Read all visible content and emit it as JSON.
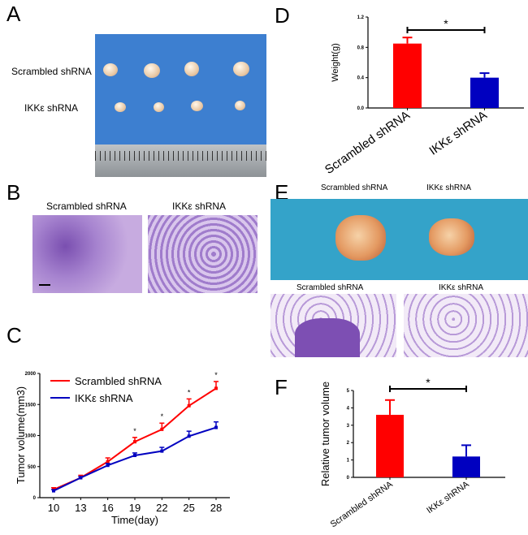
{
  "panels": {
    "A": {
      "letter": "A",
      "row_labels": [
        "Scrambled shRNA",
        "IKKε shRNA"
      ]
    },
    "B": {
      "letter": "B",
      "col_labels": [
        "Scrambled shRNA",
        "IKKε shRNA"
      ]
    },
    "C": {
      "letter": "C"
    },
    "D": {
      "letter": "D"
    },
    "E": {
      "letter": "E",
      "top_labels": [
        "Scrambled shRNA",
        "IKKε shRNA"
      ],
      "bottom_labels": [
        "Scrambled shRNA",
        "IKKε  shRNA"
      ]
    },
    "F": {
      "letter": "F"
    }
  },
  "colors": {
    "scrambled": "#ff0000",
    "ikk": "#0000c0"
  },
  "chart_data": [
    {
      "id": "C",
      "type": "line",
      "xlabel": "Time(day)",
      "ylabel": "Tumor volume(mm3)",
      "x": [
        10,
        13,
        16,
        19,
        22,
        25,
        28
      ],
      "xticks": [
        "10",
        "13",
        "16",
        "19",
        "22",
        "25",
        "28"
      ],
      "yticks": [
        "0",
        "500",
        "1000",
        "1500",
        "2000"
      ],
      "ylim": [
        0,
        2000
      ],
      "series": [
        {
          "name": "Scrambled shRNA",
          "values": [
            130,
            320,
            580,
            900,
            1100,
            1480,
            1760
          ],
          "err": [
            30,
            40,
            60,
            70,
            100,
            110,
            110
          ]
        },
        {
          "name": "IKKε shRNA",
          "values": [
            110,
            320,
            520,
            680,
            750,
            990,
            1130
          ],
          "err": [
            20,
            20,
            30,
            40,
            60,
            80,
            90
          ]
        }
      ],
      "significance": {
        "x": [
          19,
          22,
          25,
          28
        ],
        "mark": "*"
      },
      "legend": "top-left"
    },
    {
      "id": "D",
      "type": "bar",
      "ylabel": "Weight(g)",
      "categories": [
        "Scrambled shRNA",
        "IKKε shRNA"
      ],
      "values": [
        0.85,
        0.4
      ],
      "err": [
        0.08,
        0.06
      ],
      "yticks": [
        "0.0",
        "0.4",
        "0.8",
        "1.2"
      ],
      "ylim": [
        0,
        1.2
      ],
      "significance": "*"
    },
    {
      "id": "F",
      "type": "bar",
      "ylabel": "Relative tumor volume",
      "categories": [
        "Scrambled shRNA",
        "IKKε shRNA"
      ],
      "values": [
        3.6,
        1.2
      ],
      "err": [
        0.85,
        0.65
      ],
      "yticks": [
        "0",
        "1",
        "2",
        "3",
        "4",
        "5"
      ],
      "ylim": [
        0,
        5
      ],
      "significance": "*"
    }
  ]
}
